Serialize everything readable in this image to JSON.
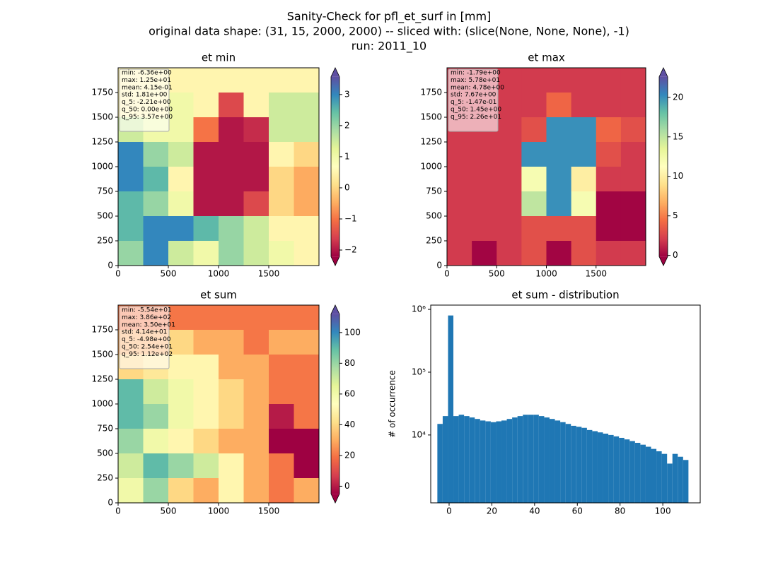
{
  "figure": {
    "title": [
      "Sanity-Check for pfl_et_surf in [mm]",
      "original data shape: (31, 15, 2000, 2000) -- sliced with: (slice(None, None, None), -1)",
      "run: 2011_10"
    ]
  },
  "chart_data": [
    {
      "type": "heatmap",
      "title": "et min",
      "cmap": "Spectral",
      "clim": [
        -2.21,
        3.57
      ],
      "xlim": [
        0,
        2000
      ],
      "ylim": [
        0,
        2000
      ],
      "xticks": [
        0,
        500,
        1000,
        1500
      ],
      "yticks": [
        0,
        250,
        500,
        750,
        1000,
        1250,
        1500,
        1750
      ],
      "cticks": [
        {
          "value": -2,
          "label": "−2"
        },
        {
          "value": -1,
          "label": "−1"
        },
        0,
        1,
        2,
        3
      ],
      "stats": [
        "min: -6.36e+00",
        "max: 1.25e+01",
        "mean: 4.15e-01",
        "std: 1.81e+00",
        "q_5: -2.21e+00",
        "q_50: 0.00e+00",
        "q_95: 3.57e+00"
      ],
      "z": [
        [
          0.5,
          0.5,
          0.5,
          0.5,
          0.5,
          0.5,
          0.5,
          0.5
        ],
        [
          0.5,
          0.5,
          1.0,
          0.5,
          -1.5,
          0.5,
          1.5,
          1.5
        ],
        [
          1.5,
          1.0,
          1.0,
          -1.0,
          -2.0,
          -1.8,
          1.5,
          1.5
        ],
        [
          3.0,
          2.0,
          1.5,
          -2.0,
          -2.0,
          -2.0,
          0.5,
          0.0
        ],
        [
          3.0,
          2.5,
          0.5,
          -2.0,
          -2.0,
          -2.0,
          0.0,
          -0.5
        ],
        [
          2.5,
          2.0,
          1.0,
          -2.0,
          -2.0,
          -1.5,
          0.0,
          -0.5
        ],
        [
          2.5,
          3.0,
          3.0,
          2.5,
          2.0,
          1.5,
          0.5,
          0.5
        ],
        [
          2.0,
          3.0,
          1.5,
          1.0,
          2.0,
          1.5,
          1.0,
          0.5
        ]
      ]
    },
    {
      "type": "heatmap",
      "title": "et max",
      "cmap": "Spectral",
      "clim": [
        -0.147,
        22.6
      ],
      "xlim": [
        0,
        2000
      ],
      "ylim": [
        0,
        2000
      ],
      "xticks": [
        0,
        500,
        1000,
        1500
      ],
      "yticks": [
        0,
        250,
        500,
        750,
        1000,
        1250,
        1500,
        1750
      ],
      "cticks": [
        0,
        5,
        10,
        15,
        20
      ],
      "stats": [
        "min: -1.79e+00",
        "max: 5.78e+01",
        "mean: 4.78e+00",
        "std: 7.67e+00",
        "q_5: -1.47e-01",
        "q_50: 1.45e+00",
        "q_95: 2.26e+01"
      ],
      "z": [
        [
          2,
          2,
          2,
          2,
          2,
          2,
          2,
          2
        ],
        [
          2,
          2,
          2,
          2,
          4,
          2,
          2,
          2
        ],
        [
          2,
          2,
          2,
          3,
          20,
          20,
          4,
          3
        ],
        [
          2,
          2,
          2,
          20,
          20,
          20,
          3,
          2
        ],
        [
          2,
          2,
          2,
          12,
          20,
          10,
          2,
          2
        ],
        [
          2,
          2,
          2,
          15,
          20,
          12,
          0,
          0
        ],
        [
          2,
          2,
          2,
          3,
          3,
          3,
          0,
          0
        ],
        [
          2,
          0,
          2,
          3,
          0,
          3,
          2,
          2
        ]
      ]
    },
    {
      "type": "heatmap",
      "title": "et sum",
      "cmap": "Spectral",
      "clim": [
        -4.98,
        112
      ],
      "xlim": [
        0,
        2000
      ],
      "ylim": [
        0,
        2000
      ],
      "xticks": [
        0,
        500,
        1000,
        1500
      ],
      "yticks": [
        0,
        250,
        500,
        750,
        1000,
        1250,
        1500,
        1750
      ],
      "cticks": [
        0,
        20,
        40,
        60,
        80,
        100
      ],
      "stats": [
        "min: -5.54e+01",
        "max: 3.86e+02",
        "mean: 3.50e+01",
        "std: 4.14e+01",
        "q_5: -4.98e+00",
        "q_50: 2.54e+01",
        "q_95: 1.12e+02"
      ],
      "z": [
        [
          20,
          20,
          20,
          20,
          20,
          20,
          20,
          20
        ],
        [
          30,
          30,
          40,
          30,
          30,
          20,
          30,
          30
        ],
        [
          40,
          45,
          50,
          50,
          30,
          30,
          20,
          20
        ],
        [
          90,
          70,
          60,
          50,
          40,
          30,
          20,
          20
        ],
        [
          90,
          80,
          60,
          50,
          40,
          30,
          0,
          20
        ],
        [
          80,
          60,
          50,
          40,
          30,
          30,
          -5,
          -5
        ],
        [
          70,
          90,
          80,
          70,
          50,
          30,
          20,
          -5
        ],
        [
          60,
          80,
          40,
          30,
          50,
          30,
          20,
          30
        ]
      ]
    },
    {
      "type": "histogram",
      "title": "et sum - distribution",
      "ylabel": "# of occurrence",
      "color": "#1f77b4",
      "log_y": true,
      "xlim": [
        -8.6,
        117.5
      ],
      "ylim": [
        830,
        1170000
      ],
      "xticks": [
        0,
        20,
        40,
        60,
        80,
        100
      ],
      "yticks": [
        {
          "value": 10000,
          "label": "10⁴"
        },
        {
          "value": 100000,
          "label": "10⁵"
        },
        {
          "value": 1000000,
          "label": "10⁶"
        }
      ],
      "bins": [
        -5.5,
        -3,
        -0.5,
        2,
        4.5,
        7,
        9.5,
        12,
        14.5,
        17,
        19.5,
        22,
        24.5,
        27,
        29.5,
        32,
        34.5,
        37,
        39.5,
        42,
        44.5,
        47,
        49.5,
        52,
        54.5,
        57,
        59.5,
        62,
        64.5,
        67,
        69.5,
        72,
        74.5,
        77,
        79.5,
        82,
        84.5,
        87,
        89.5,
        92,
        94.5,
        97,
        99.5,
        102,
        104.5,
        107,
        109.5,
        112
      ],
      "values": [
        15000,
        20000,
        800000,
        20000,
        21000,
        20000,
        19000,
        18000,
        17000,
        16500,
        16000,
        16500,
        17000,
        18000,
        19000,
        20000,
        21000,
        21000,
        21000,
        20000,
        19000,
        18000,
        17000,
        16000,
        15000,
        14000,
        13500,
        13000,
        12000,
        11500,
        11000,
        10500,
        10000,
        9500,
        9000,
        8500,
        8000,
        7500,
        7000,
        6500,
        6000,
        5500,
        5000,
        3500,
        5000,
        4500,
        4000
      ]
    }
  ]
}
